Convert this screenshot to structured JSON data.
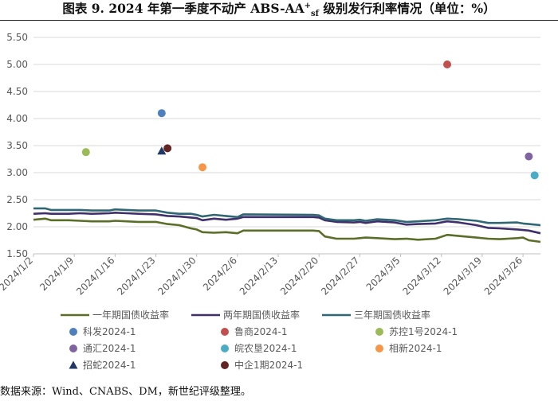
{
  "title": {
    "prefix": "图表 9.  2024 年第一季度不动产 ABS-AA",
    "sup": "+",
    "sub": "sf",
    "suffix": " 级别发行利率情况（单位：%）"
  },
  "source": "数据来源：Wind、CNABS、DM，新世纪评级整理。",
  "colors": {
    "line1": "#5a6e28",
    "line2": "#3f2f6b",
    "line3": "#2f6775",
    "grid": "#d9d9d9",
    "axis": "#bfbfbf"
  },
  "chart_data": {
    "type": "line",
    "ylim": [
      1.5,
      5.5
    ],
    "yticks": [
      "1.50",
      "2.00",
      "2.50",
      "3.00",
      "3.50",
      "4.00",
      "4.50",
      "5.00",
      "5.50"
    ],
    "xrange": [
      "2024-01-02",
      "2024-03-29"
    ],
    "xticks": [
      "2024/1/2",
      "2024/1/9",
      "2024/1/16",
      "2024/1/23",
      "2024/1/30",
      "2024/2/6",
      "2024/2/13",
      "2024/2/20",
      "2024/2/27",
      "2024/3/5",
      "2024/3/12",
      "2024/3/19",
      "2024/3/26"
    ],
    "grid": "horizontal",
    "legend_position": "bottom",
    "series": [
      {
        "name": "一年期国债收益率",
        "color": "#5a6e28",
        "points": [
          [
            "2024-01-02",
            2.13
          ],
          [
            "2024-01-04",
            2.15
          ],
          [
            "2024-01-05",
            2.12
          ],
          [
            "2024-01-08",
            2.12
          ],
          [
            "2024-01-10",
            2.11
          ],
          [
            "2024-01-12",
            2.1
          ],
          [
            "2024-01-15",
            2.1
          ],
          [
            "2024-01-16",
            2.11
          ],
          [
            "2024-01-18",
            2.1
          ],
          [
            "2024-01-20",
            2.09
          ],
          [
            "2024-01-23",
            2.09
          ],
          [
            "2024-01-25",
            2.05
          ],
          [
            "2024-01-27",
            2.03
          ],
          [
            "2024-01-29",
            1.97
          ],
          [
            "2024-01-30",
            1.95
          ],
          [
            "2024-01-31",
            1.9
          ],
          [
            "2024-02-02",
            1.89
          ],
          [
            "2024-02-04",
            1.9
          ],
          [
            "2024-02-06",
            1.88
          ],
          [
            "2024-02-07",
            1.93
          ],
          [
            "2024-02-19",
            1.93
          ],
          [
            "2024-02-20",
            1.92
          ],
          [
            "2024-02-21",
            1.82
          ],
          [
            "2024-02-23",
            1.78
          ],
          [
            "2024-02-26",
            1.78
          ],
          [
            "2024-02-27",
            1.79
          ],
          [
            "2024-02-28",
            1.8
          ],
          [
            "2024-03-01",
            1.79
          ],
          [
            "2024-03-04",
            1.77
          ],
          [
            "2024-03-06",
            1.78
          ],
          [
            "2024-03-08",
            1.76
          ],
          [
            "2024-03-11",
            1.78
          ],
          [
            "2024-03-13",
            1.85
          ],
          [
            "2024-03-15",
            1.83
          ],
          [
            "2024-03-18",
            1.8
          ],
          [
            "2024-03-20",
            1.78
          ],
          [
            "2024-03-22",
            1.77
          ],
          [
            "2024-03-25",
            1.79
          ],
          [
            "2024-03-26",
            1.8
          ],
          [
            "2024-03-27",
            1.75
          ],
          [
            "2024-03-29",
            1.72
          ]
        ]
      },
      {
        "name": "两年期国债收益率",
        "color": "#3f2f6b",
        "points": [
          [
            "2024-01-02",
            2.24
          ],
          [
            "2024-01-04",
            2.25
          ],
          [
            "2024-01-05",
            2.24
          ],
          [
            "2024-01-08",
            2.24
          ],
          [
            "2024-01-10",
            2.25
          ],
          [
            "2024-01-12",
            2.24
          ],
          [
            "2024-01-15",
            2.25
          ],
          [
            "2024-01-16",
            2.26
          ],
          [
            "2024-01-18",
            2.25
          ],
          [
            "2024-01-20",
            2.24
          ],
          [
            "2024-01-23",
            2.23
          ],
          [
            "2024-01-25",
            2.2
          ],
          [
            "2024-01-27",
            2.19
          ],
          [
            "2024-01-29",
            2.17
          ],
          [
            "2024-01-30",
            2.16
          ],
          [
            "2024-01-31",
            2.12
          ],
          [
            "2024-02-02",
            2.15
          ],
          [
            "2024-02-04",
            2.13
          ],
          [
            "2024-02-06",
            2.15
          ],
          [
            "2024-02-07",
            2.18
          ],
          [
            "2024-02-19",
            2.18
          ],
          [
            "2024-02-20",
            2.17
          ],
          [
            "2024-02-21",
            2.12
          ],
          [
            "2024-02-23",
            2.09
          ],
          [
            "2024-02-26",
            2.08
          ],
          [
            "2024-02-27",
            2.09
          ],
          [
            "2024-02-28",
            2.07
          ],
          [
            "2024-03-01",
            2.1
          ],
          [
            "2024-03-04",
            2.08
          ],
          [
            "2024-03-06",
            2.04
          ],
          [
            "2024-03-08",
            2.05
          ],
          [
            "2024-03-11",
            2.06
          ],
          [
            "2024-03-13",
            2.1
          ],
          [
            "2024-03-15",
            2.08
          ],
          [
            "2024-03-18",
            2.03
          ],
          [
            "2024-03-20",
            1.98
          ],
          [
            "2024-03-22",
            1.97
          ],
          [
            "2024-03-25",
            1.95
          ],
          [
            "2024-03-26",
            1.94
          ],
          [
            "2024-03-27",
            1.93
          ],
          [
            "2024-03-29",
            1.88
          ]
        ]
      },
      {
        "name": "三年期国债收益率",
        "color": "#2f6775",
        "points": [
          [
            "2024-01-02",
            2.34
          ],
          [
            "2024-01-04",
            2.34
          ],
          [
            "2024-01-05",
            2.31
          ],
          [
            "2024-01-08",
            2.31
          ],
          [
            "2024-01-10",
            2.31
          ],
          [
            "2024-01-12",
            2.3
          ],
          [
            "2024-01-15",
            2.3
          ],
          [
            "2024-01-16",
            2.32
          ],
          [
            "2024-01-18",
            2.31
          ],
          [
            "2024-01-20",
            2.3
          ],
          [
            "2024-01-23",
            2.3
          ],
          [
            "2024-01-25",
            2.26
          ],
          [
            "2024-01-27",
            2.24
          ],
          [
            "2024-01-29",
            2.24
          ],
          [
            "2024-01-30",
            2.22
          ],
          [
            "2024-01-31",
            2.19
          ],
          [
            "2024-02-02",
            2.22
          ],
          [
            "2024-02-04",
            2.2
          ],
          [
            "2024-02-06",
            2.18
          ],
          [
            "2024-02-07",
            2.23
          ],
          [
            "2024-02-19",
            2.22
          ],
          [
            "2024-02-20",
            2.21
          ],
          [
            "2024-02-21",
            2.15
          ],
          [
            "2024-02-23",
            2.12
          ],
          [
            "2024-02-26",
            2.12
          ],
          [
            "2024-02-27",
            2.13
          ],
          [
            "2024-02-28",
            2.11
          ],
          [
            "2024-03-01",
            2.14
          ],
          [
            "2024-03-04",
            2.12
          ],
          [
            "2024-03-06",
            2.09
          ],
          [
            "2024-03-08",
            2.1
          ],
          [
            "2024-03-11",
            2.12
          ],
          [
            "2024-03-13",
            2.15
          ],
          [
            "2024-03-15",
            2.14
          ],
          [
            "2024-03-18",
            2.11
          ],
          [
            "2024-03-20",
            2.07
          ],
          [
            "2024-03-22",
            2.07
          ],
          [
            "2024-03-25",
            2.08
          ],
          [
            "2024-03-26",
            2.06
          ],
          [
            "2024-03-27",
            2.05
          ],
          [
            "2024-03-29",
            2.03
          ]
        ]
      }
    ],
    "issues": [
      {
        "name": "科发2024-1",
        "x": "2024-01-24",
        "y": 4.1,
        "marker": "circle",
        "color": "#4e80bd"
      },
      {
        "name": "鲁商2024-1",
        "x": "2024-03-13",
        "y": 5.0,
        "marker": "circle",
        "color": "#c0504d"
      },
      {
        "name": "苏控1号2024-1",
        "x": "2024-01-11",
        "y": 3.38,
        "marker": "circle",
        "color": "#9bbb59"
      },
      {
        "name": "通汇2024-1",
        "x": "2024-03-27",
        "y": 3.3,
        "marker": "circle",
        "color": "#8064a2"
      },
      {
        "name": "皖农垦2024-1",
        "x": "2024-03-28",
        "y": 2.95,
        "marker": "circle",
        "color": "#4bacc6"
      },
      {
        "name": "相新2024-1",
        "x": "2024-01-31",
        "y": 3.1,
        "marker": "circle",
        "color": "#f79646"
      },
      {
        "name": "招蛇2024-1",
        "x": "2024-01-24",
        "y": 3.4,
        "marker": "triangle",
        "color": "#1f3864"
      },
      {
        "name": "中企1期2024-1",
        "x": "2024-01-25",
        "y": 3.45,
        "marker": "circle",
        "color": "#632523"
      }
    ]
  }
}
